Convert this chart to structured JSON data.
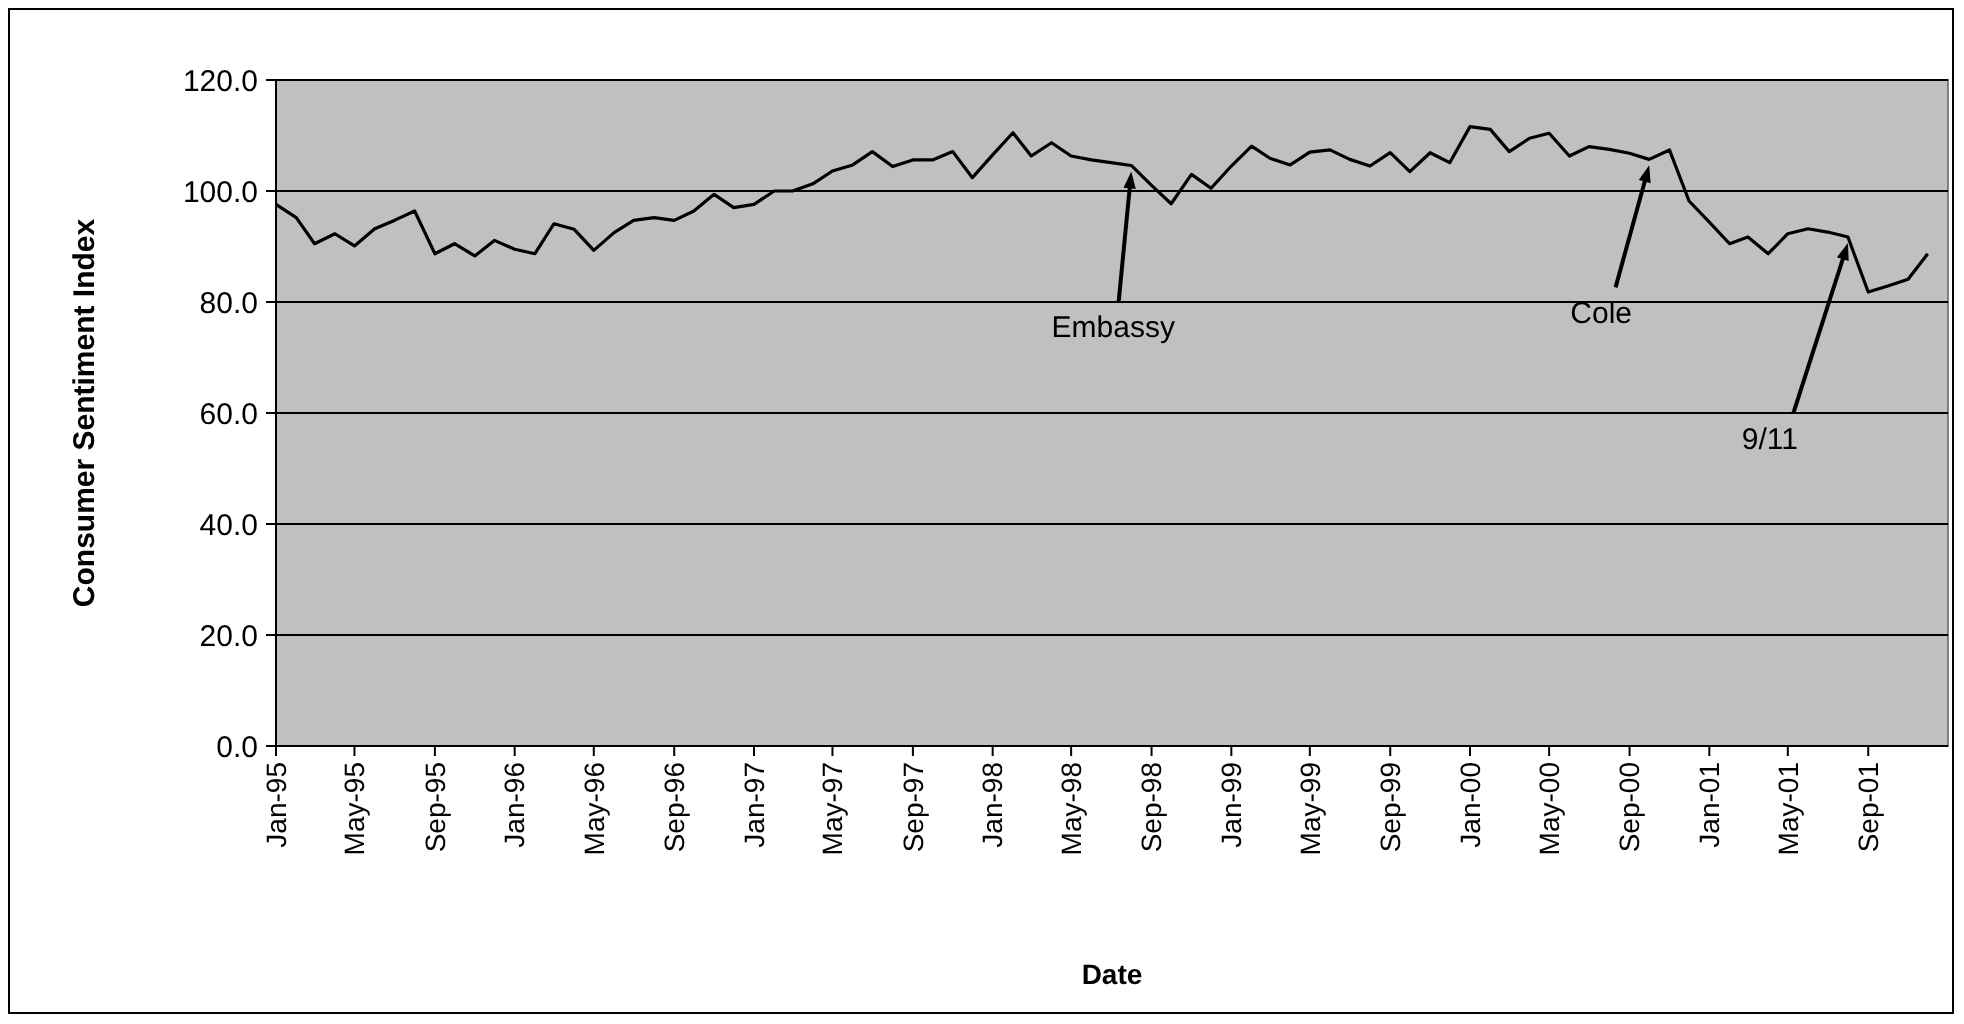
{
  "chart_data": {
    "type": "line",
    "xlabel": "Date",
    "ylabel": "Consumer Sentiment Index",
    "x": [
      "1995-01",
      "1995-02",
      "1995-03",
      "1995-04",
      "1995-05",
      "1995-06",
      "1995-07",
      "1995-08",
      "1995-09",
      "1995-10",
      "1995-11",
      "1995-12",
      "1996-01",
      "1996-02",
      "1996-03",
      "1996-04",
      "1996-05",
      "1996-06",
      "1996-07",
      "1996-08",
      "1996-09",
      "1996-10",
      "1996-11",
      "1996-12",
      "1997-01",
      "1997-02",
      "1997-03",
      "1997-04",
      "1997-05",
      "1997-06",
      "1997-07",
      "1997-08",
      "1997-09",
      "1997-10",
      "1997-11",
      "1997-12",
      "1998-01",
      "1998-02",
      "1998-03",
      "1998-04",
      "1998-05",
      "1998-06",
      "1998-07",
      "1998-08",
      "1998-09",
      "1998-10",
      "1998-11",
      "1998-12",
      "1999-01",
      "1999-02",
      "1999-03",
      "1999-04",
      "1999-05",
      "1999-06",
      "1999-07",
      "1999-08",
      "1999-09",
      "1999-10",
      "1999-11",
      "1999-12",
      "2000-01",
      "2000-02",
      "2000-03",
      "2000-04",
      "2000-05",
      "2000-06",
      "2000-07",
      "2000-08",
      "2000-09",
      "2000-10",
      "2000-11",
      "2000-12",
      "2001-01",
      "2001-02",
      "2001-03",
      "2001-04",
      "2001-05",
      "2001-06",
      "2001-07",
      "2001-08",
      "2001-09",
      "2001-10",
      "2001-11",
      "2001-12"
    ],
    "series": [
      {
        "color": "#000000",
        "values": [
          97.6,
          95.2,
          90.5,
          92.3,
          90.1,
          93.2,
          94.7,
          96.4,
          88.7,
          90.5,
          88.3,
          91.1,
          89.5,
          88.7,
          94.1,
          93.1,
          89.3,
          92.5,
          94.7,
          95.2,
          94.7,
          96.4,
          99.4,
          97.0,
          97.6,
          100.0,
          100.0,
          101.3,
          103.6,
          104.7,
          107.1,
          104.4,
          105.6,
          105.6,
          107.1,
          102.4,
          106.5,
          110.5,
          106.3,
          108.7,
          106.3,
          105.6,
          105.1,
          104.6,
          101.0,
          97.7,
          103.0,
          100.5,
          104.5,
          108.1,
          105.9,
          104.7,
          107.0,
          107.4,
          105.7,
          104.5,
          106.9,
          103.5,
          106.9,
          105.1,
          111.6,
          111.1,
          107.1,
          109.5,
          110.4,
          106.3,
          108.0,
          107.5,
          106.8,
          105.7,
          107.4,
          98.2,
          94.4,
          90.5,
          91.7,
          88.7,
          92.3,
          93.2,
          92.6,
          91.7,
          81.8,
          82.9,
          84.1,
          88.7
        ]
      }
    ],
    "xlim": [
      "1995-01",
      "2002-01"
    ],
    "xticks": [
      {
        "value": "1995-01",
        "label": "Jan-95"
      },
      {
        "value": "1995-05",
        "label": "May-95"
      },
      {
        "value": "1995-09",
        "label": "Sep-95"
      },
      {
        "value": "1996-01",
        "label": "Jan-96"
      },
      {
        "value": "1996-05",
        "label": "May-96"
      },
      {
        "value": "1996-09",
        "label": "Sep-96"
      },
      {
        "value": "1997-01",
        "label": "Jan-97"
      },
      {
        "value": "1997-05",
        "label": "May-97"
      },
      {
        "value": "1997-09",
        "label": "Sep-97"
      },
      {
        "value": "1998-01",
        "label": "Jan-98"
      },
      {
        "value": "1998-05",
        "label": "May-98"
      },
      {
        "value": "1998-09",
        "label": "Sep-98"
      },
      {
        "value": "1999-01",
        "label": "Jan-99"
      },
      {
        "value": "1999-05",
        "label": "May-99"
      },
      {
        "value": "1999-09",
        "label": "Sep-99"
      },
      {
        "value": "2000-01",
        "label": "Jan-00"
      },
      {
        "value": "2000-05",
        "label": "May-00"
      },
      {
        "value": "2000-09",
        "label": "Sep-00"
      },
      {
        "value": "2001-01",
        "label": "Jan-01"
      },
      {
        "value": "2001-05",
        "label": "May-01"
      },
      {
        "value": "2001-09",
        "label": "Sep-01"
      }
    ],
    "ylim": [
      0,
      120
    ],
    "yticks": [
      {
        "value": 0,
        "label": "0.0"
      },
      {
        "value": 20,
        "label": "20.0"
      },
      {
        "value": 40,
        "label": "40.0"
      },
      {
        "value": 60,
        "label": "60.0"
      },
      {
        "value": 80,
        "label": "80.0"
      },
      {
        "value": 100,
        "label": "100.0"
      },
      {
        "value": 120,
        "label": "120.0"
      }
    ],
    "grid": "y",
    "marker": "none",
    "line_style": "solid",
    "annotations": [
      {
        "text": "Embassy",
        "x": "1998-08",
        "y": 104.6
      },
      {
        "text": "Cole",
        "x": "2000-10",
        "y": 105.7
      },
      {
        "text": "9/11",
        "x": "2001-08",
        "y": 91.7
      }
    ]
  }
}
